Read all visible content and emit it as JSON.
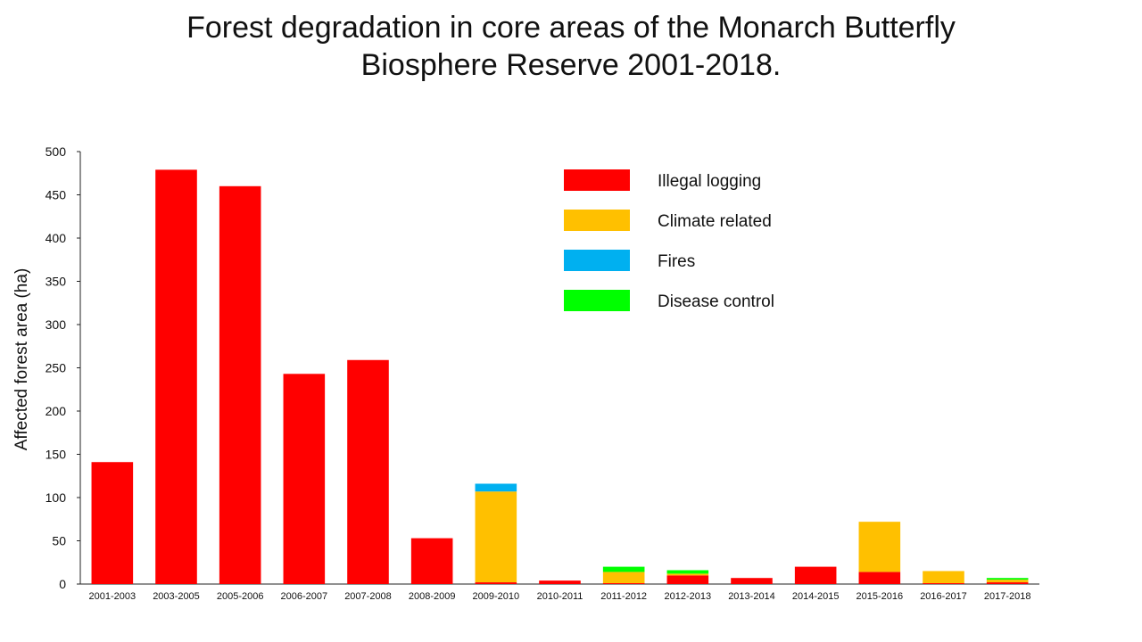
{
  "chart_data": {
    "type": "bar",
    "stacked": true,
    "title_line1": "Forest degradation in core areas of the Monarch Butterfly",
    "title_line2": "Biosphere Reserve 2001-2018.",
    "xlabel": "",
    "ylabel": "Affected forest area (ha)",
    "ylim": [
      0,
      500
    ],
    "yticks": [
      0,
      50,
      100,
      150,
      200,
      250,
      300,
      350,
      400,
      450,
      500
    ],
    "grid": false,
    "legend_position": "top-right",
    "categories": [
      "2001-2003",
      "2003-2005",
      "2005-2006",
      "2006-2007",
      "2007-2008",
      "2008-2009",
      "2009-2010",
      "2010-2011",
      "2011-2012",
      "2012-2013",
      "2013-2014",
      "2014-2015",
      "2015-2016",
      "2016-2017",
      "2017-2018"
    ],
    "series": [
      {
        "name": "Illegal logging",
        "color": "#ff0000",
        "values": [
          141,
          479,
          460,
          243,
          259,
          53,
          2,
          4,
          1,
          10,
          7,
          20,
          14,
          1,
          2
        ]
      },
      {
        "name": "Climate related",
        "color": "#ffc000",
        "values": [
          0,
          0,
          0,
          0,
          0,
          0,
          105,
          0,
          13,
          2,
          0,
          0,
          58,
          14,
          3
        ]
      },
      {
        "name": "Fires",
        "color": "#00b0f0",
        "values": [
          0,
          0,
          0,
          0,
          0,
          0,
          9,
          0,
          0,
          0,
          0,
          0,
          0,
          0,
          0
        ]
      },
      {
        "name": "Disease control",
        "color": "#00ff00",
        "values": [
          0,
          0,
          0,
          0,
          0,
          0,
          0,
          0,
          6,
          4,
          0,
          0,
          0,
          0,
          2
        ]
      }
    ]
  }
}
